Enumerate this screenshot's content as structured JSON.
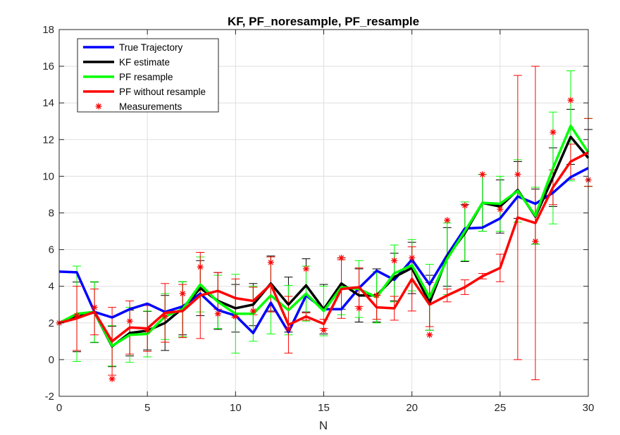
{
  "chart_data": {
    "type": "line",
    "title": "KF, PF_noresample, PF_resample",
    "xlabel": "N",
    "ylabel": "",
    "xlim": [
      0,
      30
    ],
    "ylim": [
      -2,
      18
    ],
    "x_ticks": [
      0,
      5,
      10,
      15,
      20,
      25,
      30
    ],
    "y_ticks": [
      -2,
      0,
      2,
      4,
      6,
      8,
      10,
      12,
      14,
      16,
      18
    ],
    "grid": true,
    "legend_location": "top-left",
    "x": [
      0,
      1,
      2,
      3,
      4,
      5,
      6,
      7,
      8,
      9,
      10,
      11,
      12,
      13,
      14,
      15,
      16,
      17,
      18,
      19,
      20,
      21,
      22,
      23,
      24,
      25,
      26,
      27,
      28,
      29,
      30
    ],
    "series": [
      {
        "name": "True Trajectory",
        "style": "line",
        "color": "#0000ff",
        "values": [
          4.8,
          4.76,
          2.6,
          2.3,
          2.75,
          3.05,
          2.6,
          2.9,
          3.6,
          2.7,
          2.4,
          1.45,
          3.1,
          1.5,
          3.5,
          2.75,
          2.75,
          3.9,
          4.85,
          4.35,
          5.45,
          4.1,
          5.7,
          7.15,
          7.2,
          7.7,
          8.9,
          8.5,
          9.1,
          9.95,
          10.45
        ]
      },
      {
        "name": "KF estimate",
        "style": "line",
        "color": "#000000",
        "values": [
          2.0,
          2.33,
          2.58,
          0.72,
          1.45,
          1.58,
          2.0,
          2.8,
          3.9,
          3.2,
          2.8,
          3.0,
          4.15,
          3.0,
          4.05,
          2.75,
          4.15,
          3.5,
          3.5,
          4.5,
          5.0,
          3.1,
          5.6,
          6.9,
          8.55,
          8.35,
          9.25,
          7.8,
          9.95,
          12.15,
          11.0
        ],
        "error": [
          0,
          1.9,
          1.65,
          1.1,
          1.25,
          1.05,
          1.5,
          1.45,
          1.5,
          1.55,
          1.3,
          1.15,
          1.5,
          1.5,
          1.45,
          1.35,
          1.4,
          1.45,
          1.45,
          1.3,
          1.4,
          1.5,
          1.6,
          1.55,
          1.55,
          1.45,
          1.55,
          1.5,
          1.6,
          1.5,
          1.55
        ]
      },
      {
        "name": "PF resample",
        "style": "line",
        "color": "#00ff00",
        "values": [
          2.0,
          2.5,
          2.6,
          0.75,
          1.35,
          1.4,
          2.35,
          2.75,
          4.1,
          3.15,
          2.5,
          2.5,
          3.5,
          2.7,
          3.6,
          2.65,
          3.95,
          3.85,
          3.4,
          4.7,
          5.15,
          3.4,
          5.5,
          7.0,
          8.55,
          8.5,
          9.2,
          7.85,
          10.45,
          12.75,
          11.3
        ],
        "error": [
          0,
          2.6,
          1.65,
          1.1,
          1.5,
          1.25,
          1.25,
          1.5,
          1.5,
          1.45,
          2.15,
          1.5,
          2.1,
          1.35,
          1.5,
          1.35,
          1.5,
          1.55,
          1.4,
          1.55,
          1.4,
          1.8,
          1.95,
          1.6,
          1.55,
          1.5,
          1.7,
          1.55,
          3.05,
          3.0,
          1.85
        ]
      },
      {
        "name": "PF without resample",
        "style": "line",
        "color": "#ff0000",
        "values": [
          2.0,
          2.25,
          2.6,
          1.0,
          1.75,
          1.7,
          2.55,
          2.65,
          3.5,
          3.75,
          3.35,
          3.2,
          4.1,
          1.9,
          2.35,
          1.95,
          3.85,
          3.95,
          2.85,
          2.8,
          4.4,
          3.0,
          3.5,
          3.95,
          4.55,
          5.0,
          7.75,
          7.45,
          9.4,
          10.8,
          11.3
        ],
        "error": [
          0,
          1.75,
          1.25,
          1.85,
          1.45,
          1.25,
          1.6,
          1.45,
          2.35,
          1.0,
          1.05,
          0.75,
          1.5,
          1.55,
          0.2,
          0.25,
          1.6,
          1.05,
          0.65,
          0.65,
          1.75,
          1.2,
          0.35,
          0.4,
          0.15,
          0.75,
          7.75,
          8.55,
          0.95,
          0.95,
          1.85
        ]
      },
      {
        "name": "Measurements",
        "style": "marker",
        "marker": "*",
        "color": "#ff0000",
        "values": [
          2.0,
          2.4,
          2.85,
          -1.05,
          2.1,
          1.6,
          2.35,
          3.6,
          5.05,
          2.5,
          2.35,
          2.65,
          5.3,
          1.7,
          4.95,
          1.6,
          5.55,
          2.8,
          3.5,
          5.4,
          5.55,
          1.35,
          7.6,
          8.4,
          10.1,
          8.2,
          10.1,
          6.45,
          12.4,
          14.15,
          9.8
        ]
      }
    ]
  }
}
